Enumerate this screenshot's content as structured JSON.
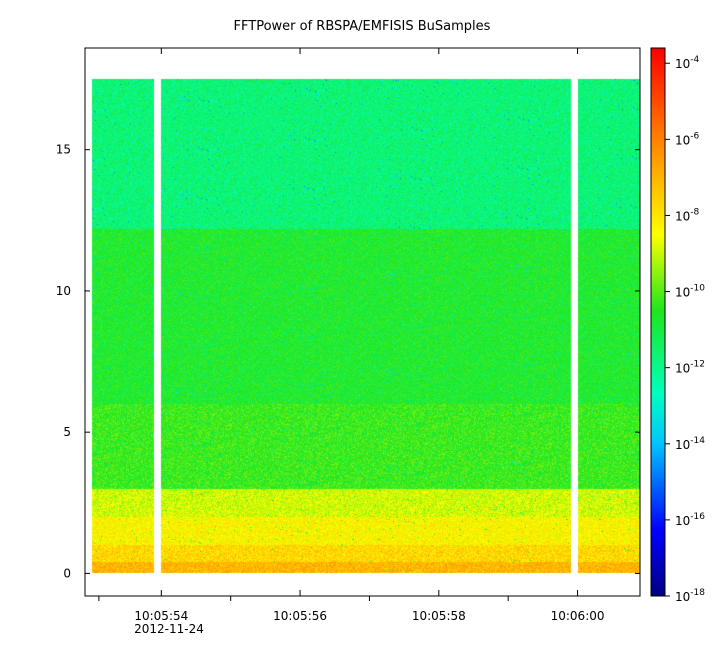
{
  "chart_data": {
    "type": "heatmap",
    "title": "FFTPower of RBSPA/EMFISIS  BuSamples",
    "xlabel": "",
    "ylabel": "",
    "x_axis": {
      "type": "time",
      "range": [
        "10:05:53.0",
        "10:06:00.9"
      ],
      "major_ticks": [
        "10:05:54",
        "10:05:56",
        "10:05:58",
        "10:06:00"
      ],
      "major_tick_seconds": [
        54,
        56,
        58,
        60
      ],
      "minor_tick_seconds": [
        53.1,
        55,
        57,
        59
      ],
      "date_label": "2012-11-24"
    },
    "y_axis": {
      "range": [
        -0.8,
        18.6
      ],
      "ticks": [
        0,
        5,
        10,
        15
      ],
      "data_max": 17.5
    },
    "colorbar": {
      "scale": "log",
      "range_exponent": [
        -18,
        -3.6
      ],
      "tick_base": "10",
      "tick_exponents": [
        "-18",
        "-16",
        "-14",
        "-12",
        "-10",
        "-8",
        "-6",
        "-4"
      ],
      "tick_exponent_values": [
        -18,
        -16,
        -14,
        -12,
        -10,
        -8,
        -6,
        -4
      ]
    },
    "power_profile": [
      {
        "y_from": 0.0,
        "y_to": 0.4,
        "log10_power": -7.0
      },
      {
        "y_from": 0.4,
        "y_to": 1.0,
        "log10_power": -7.7
      },
      {
        "y_from": 1.0,
        "y_to": 2.0,
        "log10_power": -8.3
      },
      {
        "y_from": 2.0,
        "y_to": 3.0,
        "log10_power": -8.9
      },
      {
        "y_from": 3.0,
        "y_to": 6.0,
        "log10_power": -10.3
      },
      {
        "y_from": 6.0,
        "y_to": 12.2,
        "log10_power": -10.7
      },
      {
        "y_from": 12.2,
        "y_to": 17.5,
        "log10_power": -11.7
      }
    ],
    "data_gaps_seconds": [
      [
        53.9,
        54.0
      ],
      [
        59.9,
        60.0
      ]
    ],
    "grid": false,
    "legend": "none"
  },
  "colors": {
    "background": "#ffffff",
    "axis": "#000000",
    "gap": "#ffffff"
  }
}
